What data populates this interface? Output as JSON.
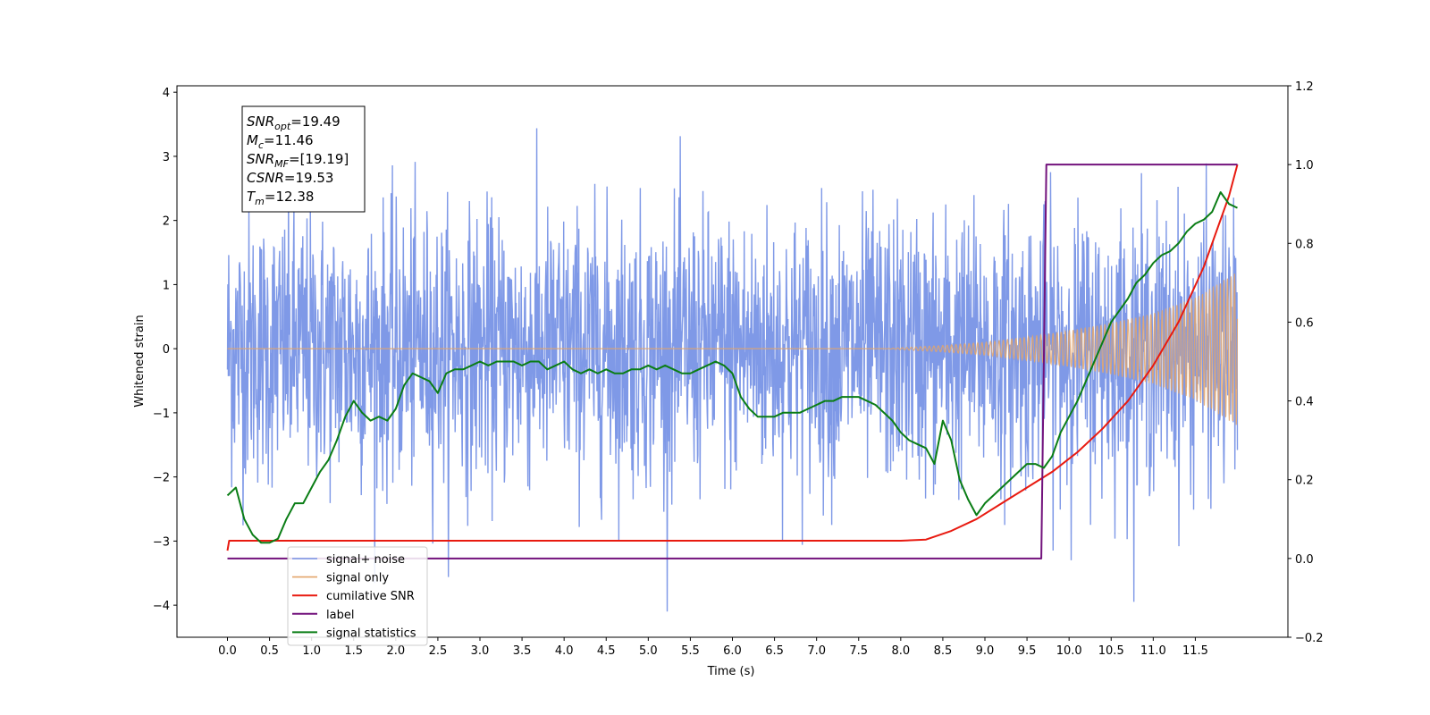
{
  "chart_data": {
    "type": "line",
    "xlabel": "Time (s)",
    "ylabel_left": "Whitened strain",
    "xlim": [
      -0.6,
      12.6
    ],
    "ylim_left": [
      -4.5,
      4.1
    ],
    "ylim_right": [
      -0.2,
      1.2
    ],
    "x_ticks": [
      "0.0",
      "0.5",
      "1.0",
      "1.5",
      "2.0",
      "2.5",
      "3.0",
      "3.5",
      "4.0",
      "4.5",
      "5.0",
      "5.5",
      "6.0",
      "6.5",
      "7.0",
      "7.5",
      "8.0",
      "8.5",
      "9.0",
      "9.5",
      "10.0",
      "10.5",
      "11.0",
      "11.5"
    ],
    "y_ticks_left": [
      "4",
      "3",
      "2",
      "1",
      "0",
      "−1",
      "−2",
      "−3",
      "−4"
    ],
    "y_ticks_right": [
      "1.2",
      "1.0",
      "0.8",
      "0.6",
      "0.4",
      "0.2",
      "0.0",
      "−0.2"
    ],
    "grid": false,
    "legend_position": "lower-left",
    "series": [
      {
        "name": "signal+ noise",
        "axis": "left",
        "color": "#7893e6",
        "description_values": {
          "t_start": 0.0,
          "t_end": 12.0,
          "amplitude_range": [
            -4.1,
            3.7
          ]
        }
      },
      {
        "name": "signal only",
        "axis": "left",
        "color": "#e3a56a",
        "x": [
          0.0,
          7.8,
          8.5,
          9.0,
          9.5,
          10.0,
          10.5,
          11.0,
          11.5,
          12.0
        ],
        "envelope": [
          0.0,
          0.0,
          0.05,
          0.1,
          0.18,
          0.28,
          0.4,
          0.55,
          0.8,
          1.2
        ]
      },
      {
        "name": "cumilative SNR",
        "axis": "right",
        "color": "#e81a10",
        "x": [
          0.0,
          0.02,
          8.0,
          8.3,
          8.6,
          8.9,
          9.2,
          9.5,
          9.8,
          10.1,
          10.4,
          10.7,
          11.0,
          11.3,
          11.6,
          11.9,
          12.0
        ],
        "y": [
          0.02,
          0.045,
          0.045,
          0.048,
          0.07,
          0.1,
          0.14,
          0.18,
          0.22,
          0.27,
          0.33,
          0.4,
          0.49,
          0.6,
          0.74,
          0.92,
          1.0
        ]
      },
      {
        "name": "label",
        "axis": "right",
        "color": "#72127c",
        "x": [
          0.0,
          9.67,
          9.73,
          12.0
        ],
        "y": [
          0.0,
          0.0,
          1.0,
          1.0
        ]
      },
      {
        "name": "signal statistics",
        "axis": "right",
        "color": "#0a7d15",
        "x": [
          0.0,
          0.1,
          0.2,
          0.3,
          0.4,
          0.5,
          0.6,
          0.7,
          0.8,
          0.9,
          1.0,
          1.1,
          1.2,
          1.3,
          1.4,
          1.5,
          1.6,
          1.7,
          1.8,
          1.9,
          2.0,
          2.1,
          2.2,
          2.3,
          2.4,
          2.5,
          2.6,
          2.7,
          2.8,
          2.9,
          3.0,
          3.1,
          3.2,
          3.3,
          3.4,
          3.5,
          3.6,
          3.7,
          3.8,
          3.9,
          4.0,
          4.1,
          4.2,
          4.3,
          4.4,
          4.5,
          4.6,
          4.7,
          4.8,
          4.9,
          5.0,
          5.1,
          5.2,
          5.3,
          5.4,
          5.5,
          5.6,
          5.7,
          5.8,
          5.9,
          6.0,
          6.1,
          6.2,
          6.3,
          6.4,
          6.5,
          6.6,
          6.7,
          6.8,
          6.9,
          7.0,
          7.1,
          7.2,
          7.3,
          7.4,
          7.5,
          7.6,
          7.7,
          7.8,
          7.9,
          8.0,
          8.1,
          8.2,
          8.3,
          8.4,
          8.5,
          8.6,
          8.7,
          8.8,
          8.9,
          9.0,
          9.1,
          9.2,
          9.3,
          9.4,
          9.5,
          9.6,
          9.7,
          9.8,
          9.9,
          10.0,
          10.1,
          10.2,
          10.3,
          10.4,
          10.5,
          10.6,
          10.7,
          10.8,
          10.9,
          11.0,
          11.1,
          11.2,
          11.3,
          11.4,
          11.5,
          11.6,
          11.7,
          11.8,
          11.9,
          12.0
        ],
        "y": [
          0.16,
          0.18,
          0.1,
          0.06,
          0.04,
          0.04,
          0.05,
          0.1,
          0.14,
          0.14,
          0.18,
          0.22,
          0.25,
          0.3,
          0.36,
          0.4,
          0.37,
          0.35,
          0.36,
          0.35,
          0.38,
          0.44,
          0.47,
          0.46,
          0.45,
          0.42,
          0.47,
          0.48,
          0.48,
          0.49,
          0.5,
          0.49,
          0.5,
          0.5,
          0.5,
          0.49,
          0.5,
          0.5,
          0.48,
          0.49,
          0.5,
          0.48,
          0.47,
          0.48,
          0.47,
          0.48,
          0.47,
          0.47,
          0.48,
          0.48,
          0.49,
          0.48,
          0.49,
          0.48,
          0.47,
          0.47,
          0.48,
          0.49,
          0.5,
          0.49,
          0.47,
          0.41,
          0.38,
          0.36,
          0.36,
          0.36,
          0.37,
          0.37,
          0.37,
          0.38,
          0.39,
          0.4,
          0.4,
          0.41,
          0.41,
          0.41,
          0.4,
          0.39,
          0.37,
          0.35,
          0.32,
          0.3,
          0.29,
          0.28,
          0.24,
          0.35,
          0.3,
          0.2,
          0.15,
          0.11,
          0.14,
          0.16,
          0.18,
          0.2,
          0.22,
          0.24,
          0.24,
          0.23,
          0.26,
          0.32,
          0.36,
          0.4,
          0.45,
          0.5,
          0.55,
          0.6,
          0.63,
          0.66,
          0.7,
          0.72,
          0.75,
          0.77,
          0.78,
          0.8,
          0.83,
          0.85,
          0.86,
          0.88,
          0.93,
          0.9,
          0.89
        ]
      }
    ],
    "annotation_box": {
      "lines": [
        {
          "sym": "SNR",
          "sub": "opt",
          "value": "=19.49"
        },
        {
          "sym": "M",
          "sub": "c",
          "value": "=11.46"
        },
        {
          "sym": "SNR",
          "sub": "MF",
          "value": "=[19.19]"
        },
        {
          "sym": "CSNR",
          "sub": "",
          "value": "=19.53"
        },
        {
          "sym": "T",
          "sub": "m",
          "value": "=12.38"
        }
      ]
    }
  }
}
